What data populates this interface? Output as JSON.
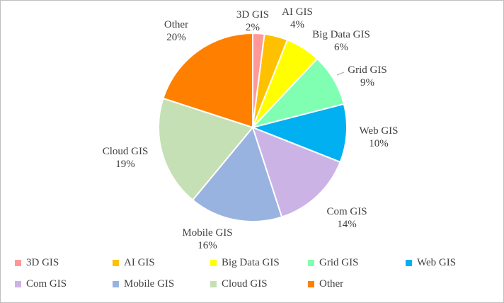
{
  "chart_data": {
    "type": "pie",
    "title": "",
    "slices": [
      {
        "label": "3D GIS",
        "value": 2,
        "display": "2%",
        "color": "#ff9999"
      },
      {
        "label": "AI GIS",
        "value": 4,
        "display": "4%",
        "color": "#ffc000"
      },
      {
        "label": "Big Data GIS",
        "value": 6,
        "display": "6%",
        "color": "#ffff00"
      },
      {
        "label": "Grid GIS",
        "value": 9,
        "display": "9%",
        "color": "#80ffb3"
      },
      {
        "label": "Web GIS",
        "value": 10,
        "display": "10%",
        "color": "#00b0f0"
      },
      {
        "label": "Com GIS",
        "value": 14,
        "display": "14%",
        "color": "#ccb3e6"
      },
      {
        "label": "Mobile GIS",
        "value": 16,
        "display": "16%",
        "color": "#99b3e0"
      },
      {
        "label": "Cloud GIS",
        "value": 19,
        "display": "19%",
        "color": "#c5e0b4"
      },
      {
        "label": "Other",
        "value": 20,
        "display": "20%",
        "color": "#ff8000"
      }
    ],
    "legend_position": "bottom"
  }
}
